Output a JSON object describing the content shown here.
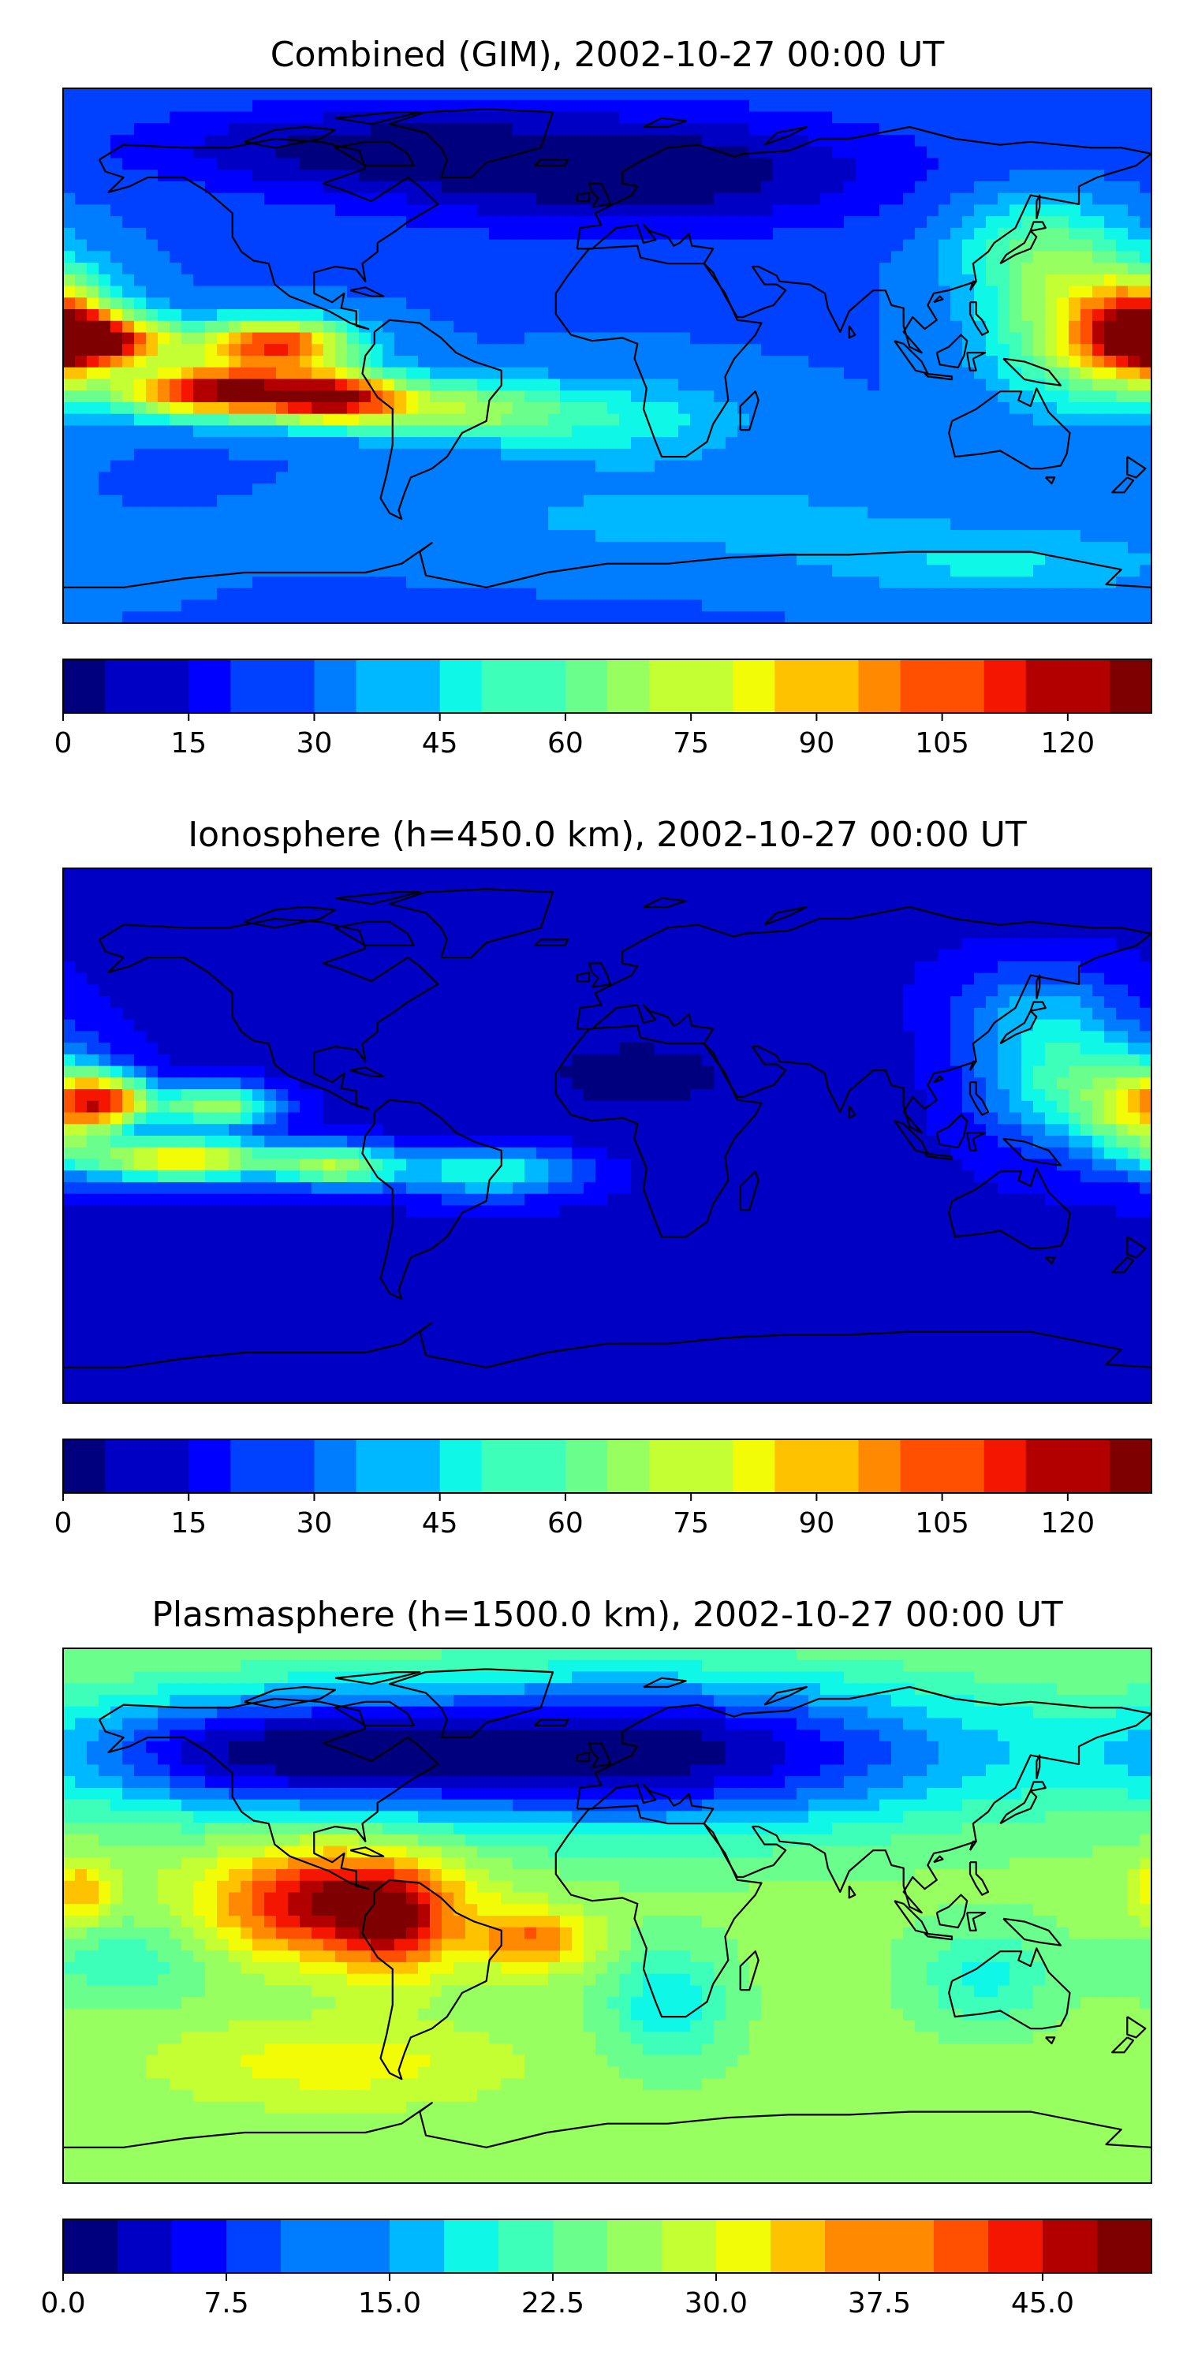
{
  "panels": [
    {
      "title": "Combined (GIM), 2002-10-27 00:00 UT",
      "colorbar": {
        "levels": [
          0,
          5,
          10,
          15,
          20,
          25,
          30,
          35,
          40,
          45,
          50,
          55,
          60,
          65,
          70,
          75,
          80,
          85,
          90,
          95,
          100,
          105,
          110,
          115,
          120,
          125,
          130
        ],
        "tick_values": [
          0,
          15,
          30,
          45,
          60,
          75,
          90,
          105,
          120
        ],
        "tick_labels": [
          "0",
          "15",
          "30",
          "45",
          "60",
          "75",
          "90",
          "105",
          "120"
        ]
      },
      "field": {
        "base": 0.22,
        "features": [
          {
            "lon": -165,
            "lat": 5,
            "amp": 0.55,
            "sx": 16,
            "sy": 6
          },
          {
            "lon": -110,
            "lat": 4,
            "amp": 0.62,
            "sx": 18,
            "sy": 6
          },
          {
            "lon": -130,
            "lat": -12,
            "amp": 0.72,
            "sx": 22,
            "sy": 6
          },
          {
            "lon": -90,
            "lat": -14,
            "amp": 0.62,
            "sx": 16,
            "sy": 6
          },
          {
            "lon": -50,
            "lat": -18,
            "amp": 0.3,
            "sx": 25,
            "sy": 7
          },
          {
            "lon": 5,
            "lat": -22,
            "amp": 0.14,
            "sx": 30,
            "sy": 10
          },
          {
            "lon": 178,
            "lat": 8,
            "amp": 0.58,
            "sx": 14,
            "sy": 12
          },
          {
            "lon": 155,
            "lat": 10,
            "amp": 0.35,
            "sx": 20,
            "sy": 18
          },
          {
            "lon": 140,
            "lat": 38,
            "amp": 0.18,
            "sx": 20,
            "sy": 12
          },
          {
            "lon": 10,
            "lat": 62,
            "amp": -0.22,
            "sx": 60,
            "sy": 14
          },
          {
            "lon": -90,
            "lat": 70,
            "amp": -0.15,
            "sx": 50,
            "sy": 10
          },
          {
            "lon": 30,
            "lat": -55,
            "amp": 0.08,
            "sx": 60,
            "sy": 10
          },
          {
            "lon": 130,
            "lat": -70,
            "amp": 0.12,
            "sx": 40,
            "sy": 8
          }
        ]
      }
    },
    {
      "title": "Ionosphere  (h=450.0 km), 2002-10-27 00:00 UT",
      "colorbar": {
        "levels": [
          0,
          5,
          10,
          15,
          20,
          25,
          30,
          35,
          40,
          45,
          50,
          55,
          60,
          65,
          70,
          75,
          80,
          85,
          90,
          95,
          100,
          105,
          110,
          115,
          120,
          125,
          130
        ],
        "tick_values": [
          0,
          15,
          30,
          45,
          60,
          75,
          90,
          105,
          120
        ],
        "tick_labels": [
          "0",
          "15",
          "30",
          "45",
          "60",
          "75",
          "90",
          "105",
          "120"
        ]
      },
      "field": {
        "base": 0.1,
        "features": [
          {
            "lon": -165,
            "lat": 12,
            "amp": 0.55,
            "sx": 10,
            "sy": 6
          },
          {
            "lon": -130,
            "lat": 10,
            "amp": 0.45,
            "sx": 14,
            "sy": 5
          },
          {
            "lon": -140,
            "lat": -8,
            "amp": 0.58,
            "sx": 22,
            "sy": 5
          },
          {
            "lon": -90,
            "lat": -10,
            "amp": 0.4,
            "sx": 14,
            "sy": 5
          },
          {
            "lon": -40,
            "lat": -12,
            "amp": 0.3,
            "sx": 22,
            "sy": 6
          },
          {
            "lon": 178,
            "lat": 8,
            "amp": 0.45,
            "sx": 14,
            "sy": 12
          },
          {
            "lon": 150,
            "lat": 20,
            "amp": 0.3,
            "sx": 20,
            "sy": 16
          },
          {
            "lon": 140,
            "lat": 45,
            "amp": 0.12,
            "sx": 20,
            "sy": 10
          },
          {
            "lon": 10,
            "lat": 20,
            "amp": -0.05,
            "sx": 50,
            "sy": 20
          }
        ]
      }
    },
    {
      "title": "Plasmasphere (h=1500.0 km), 2002-10-27 00:00 UT",
      "colorbar": {
        "levels": [
          0,
          2.5,
          5,
          7.5,
          10,
          12.5,
          15,
          17.5,
          20,
          22.5,
          25,
          27.5,
          30,
          32.5,
          35,
          37.5,
          40,
          42.5,
          45,
          47.5,
          50
        ],
        "tick_values": [
          0,
          7.5,
          15,
          22.5,
          30,
          37.5,
          45
        ],
        "tick_labels": [
          "0.0",
          "7.5",
          "15.0",
          "22.5",
          "30.0",
          "37.5",
          "45.0"
        ]
      },
      "field": {
        "base": 0.52,
        "features": [
          {
            "lon": -90,
            "lat": 5,
            "amp": 0.45,
            "sx": 28,
            "sy": 13
          },
          {
            "lon": -70,
            "lat": -5,
            "amp": 0.2,
            "sx": 12,
            "sy": 12
          },
          {
            "lon": -25,
            "lat": -8,
            "amp": 0.25,
            "sx": 14,
            "sy": 7
          },
          {
            "lon": -175,
            "lat": 8,
            "amp": 0.2,
            "sx": 8,
            "sy": 8
          },
          {
            "lon": 10,
            "lat": 55,
            "amp": -0.5,
            "sx": 80,
            "sy": 18
          },
          {
            "lon": -120,
            "lat": 55,
            "amp": -0.35,
            "sx": 50,
            "sy": 14
          },
          {
            "lon": 20,
            "lat": -30,
            "amp": -0.18,
            "sx": 14,
            "sy": 14
          },
          {
            "lon": 125,
            "lat": -20,
            "amp": -0.15,
            "sx": 16,
            "sy": 12
          },
          {
            "lon": -160,
            "lat": -15,
            "amp": -0.12,
            "sx": 20,
            "sy": 10
          },
          {
            "lon": -90,
            "lat": -50,
            "amp": 0.12,
            "sx": 40,
            "sy": 10
          }
        ]
      }
    }
  ],
  "colormap": [
    "#00007f",
    "#0000c4",
    "#0000ff",
    "#0040ff",
    "#007cff",
    "#00b8ff",
    "#0ff8e7",
    "#3dffba",
    "#6aff8d",
    "#97ff60",
    "#c4ff33",
    "#f1fc06",
    "#ffc200",
    "#ff8900",
    "#ff4f00",
    "#f51600",
    "#b20000",
    "#7f0000"
  ]
}
